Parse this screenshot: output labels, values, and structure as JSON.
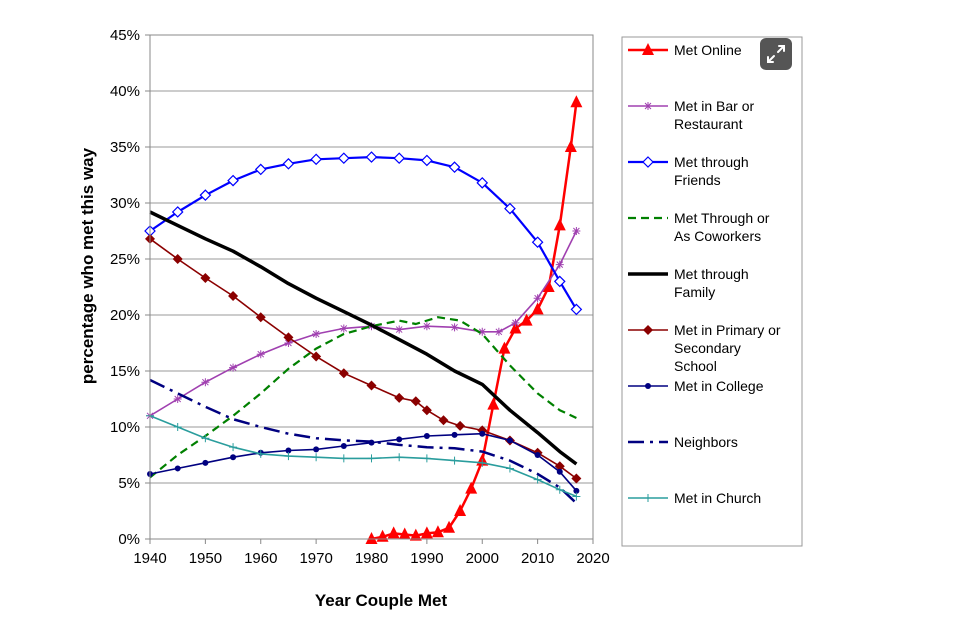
{
  "chart_data": {
    "type": "line",
    "xlabel": "Year Couple Met",
    "ylabel": "percentage who met this way",
    "xlim": [
      1940,
      2020
    ],
    "ylim": [
      0,
      45
    ],
    "x_ticks": [
      "1940",
      "1950",
      "1960",
      "1970",
      "1980",
      "1990",
      "2000",
      "2010",
      "2020"
    ],
    "y_ticks": [
      "0%",
      "5%",
      "10%",
      "15%",
      "20%",
      "25%",
      "30%",
      "35%",
      "40%",
      "45%"
    ],
    "grid": "horizontal",
    "legend_position": "right",
    "series": [
      {
        "name": "Met Online",
        "color": "#ff0000",
        "marker": "triangle",
        "dash": "solid",
        "x": [
          1980,
          1982,
          1984,
          1986,
          1988,
          1990,
          1992,
          1994,
          1996,
          1998,
          2000,
          2002,
          2004,
          2006,
          2008,
          2010,
          2012,
          2014,
          2016,
          2017
        ],
        "y": [
          0,
          0.2,
          0.5,
          0.4,
          0.3,
          0.5,
          0.6,
          1.0,
          2.5,
          4.5,
          7,
          12,
          17,
          18.8,
          19.5,
          20.5,
          22.5,
          28,
          35,
          39
        ]
      },
      {
        "name": "Met in Bar or Restaurant",
        "color": "#a040b0",
        "marker": "asterisk",
        "dash": "solid",
        "x": [
          1940,
          1945,
          1950,
          1955,
          1960,
          1965,
          1970,
          1975,
          1980,
          1985,
          1990,
          1995,
          2000,
          2003,
          2006,
          2010,
          2014,
          2017
        ],
        "y": [
          11,
          12.5,
          14,
          15.3,
          16.5,
          17.5,
          18.3,
          18.8,
          19,
          18.7,
          19,
          18.9,
          18.5,
          18.5,
          19.3,
          21.5,
          24.5,
          27.5
        ]
      },
      {
        "name": "Met through Friends",
        "color": "#0000ff",
        "marker": "diamond",
        "dash": "solid",
        "x": [
          1940,
          1945,
          1950,
          1955,
          1960,
          1965,
          1970,
          1975,
          1980,
          1985,
          1990,
          1995,
          2000,
          2005,
          2010,
          2014,
          2017
        ],
        "y": [
          27.5,
          29.2,
          30.7,
          32,
          33,
          33.5,
          33.9,
          34,
          34.1,
          34,
          33.8,
          33.2,
          31.8,
          29.5,
          26.5,
          23,
          20.5
        ]
      },
      {
        "name": "Met Through or As Coworkers",
        "color": "#008000",
        "marker": "none",
        "dash": "dashed",
        "x": [
          1940,
          1945,
          1950,
          1955,
          1960,
          1965,
          1970,
          1975,
          1980,
          1985,
          1988,
          1992,
          1996,
          2000,
          2005,
          2010,
          2014,
          2017
        ],
        "y": [
          5.5,
          7.5,
          9.2,
          11,
          13,
          15.2,
          17,
          18.3,
          19,
          19.5,
          19.2,
          19.8,
          19.5,
          18.3,
          15.5,
          13,
          11.5,
          10.8
        ]
      },
      {
        "name": "Met through Family",
        "color": "#000000",
        "marker": "none",
        "dash": "solid",
        "x": [
          1940,
          1945,
          1950,
          1955,
          1960,
          1965,
          1970,
          1975,
          1980,
          1985,
          1990,
          1995,
          2000,
          2005,
          2010,
          2014,
          2017
        ],
        "y": [
          29.2,
          28,
          26.8,
          25.7,
          24.3,
          22.8,
          21.5,
          20.3,
          19.1,
          17.8,
          16.5,
          15,
          13.8,
          11.5,
          9.5,
          7.8,
          6.7
        ]
      },
      {
        "name": "Met in Primary or Secondary School",
        "color": "#8b0000",
        "marker": "diamond-filled",
        "dash": "solid",
        "x": [
          1940,
          1945,
          1950,
          1955,
          1960,
          1965,
          1970,
          1975,
          1980,
          1985,
          1988,
          1990,
          1993,
          1996,
          2000,
          2005,
          2010,
          2014,
          2017
        ],
        "y": [
          26.8,
          25,
          23.3,
          21.7,
          19.8,
          18,
          16.3,
          14.8,
          13.7,
          12.6,
          12.3,
          11.5,
          10.6,
          10.1,
          9.7,
          8.8,
          7.7,
          6.5,
          5.4
        ]
      },
      {
        "name": "Met in College",
        "color": "#000080",
        "marker": "circle",
        "dash": "solid",
        "x": [
          1940,
          1945,
          1950,
          1955,
          1960,
          1965,
          1970,
          1975,
          1980,
          1985,
          1990,
          1995,
          2000,
          2005,
          2010,
          2014,
          2017
        ],
        "y": [
          5.8,
          6.3,
          6.8,
          7.3,
          7.7,
          7.9,
          8,
          8.3,
          8.6,
          8.9,
          9.2,
          9.3,
          9.4,
          8.8,
          7.5,
          6,
          4.3
        ]
      },
      {
        "name": "Neighbors",
        "color": "#000080",
        "marker": "none",
        "dash": "dashdot",
        "x": [
          1940,
          1945,
          1950,
          1955,
          1960,
          1965,
          1970,
          1975,
          1980,
          1985,
          1990,
          1995,
          2000,
          2005,
          2010,
          2014,
          2017
        ],
        "y": [
          14.2,
          13,
          11.8,
          10.7,
          10,
          9.4,
          9,
          8.8,
          8.7,
          8.4,
          8.2,
          8.1,
          7.8,
          7,
          5.8,
          4.6,
          3.2
        ]
      },
      {
        "name": "Met in Church",
        "color": "#2a9d9d",
        "marker": "plus",
        "dash": "solid",
        "x": [
          1940,
          1945,
          1950,
          1955,
          1960,
          1965,
          1970,
          1975,
          1980,
          1985,
          1990,
          1995,
          2000,
          2005,
          2010,
          2014,
          2017
        ],
        "y": [
          11,
          10,
          9,
          8.2,
          7.6,
          7.4,
          7.3,
          7.2,
          7.2,
          7.3,
          7.2,
          7,
          6.8,
          6.3,
          5.3,
          4.4,
          3.8
        ]
      }
    ],
    "legend": [
      {
        "lines": [
          "Met Online"
        ]
      },
      {
        "lines": [
          "Met in Bar or",
          "Restaurant"
        ]
      },
      {
        "lines": [
          "Met through",
          "Friends"
        ]
      },
      {
        "lines": [
          "Met Through or",
          "As Coworkers"
        ]
      },
      {
        "lines": [
          "Met through",
          "Family"
        ]
      },
      {
        "lines": [
          "Met in Primary or",
          "Secondary",
          "School"
        ]
      },
      {
        "lines": [
          "Met in College"
        ]
      },
      {
        "lines": [
          "Neighbors"
        ]
      },
      {
        "lines": [
          "Met in Church"
        ]
      }
    ]
  },
  "ui": {
    "expand_icon": "expand-icon",
    "colors": {
      "plot_border": "#888888",
      "grid": "#999999",
      "button_bg": "#555555"
    }
  }
}
